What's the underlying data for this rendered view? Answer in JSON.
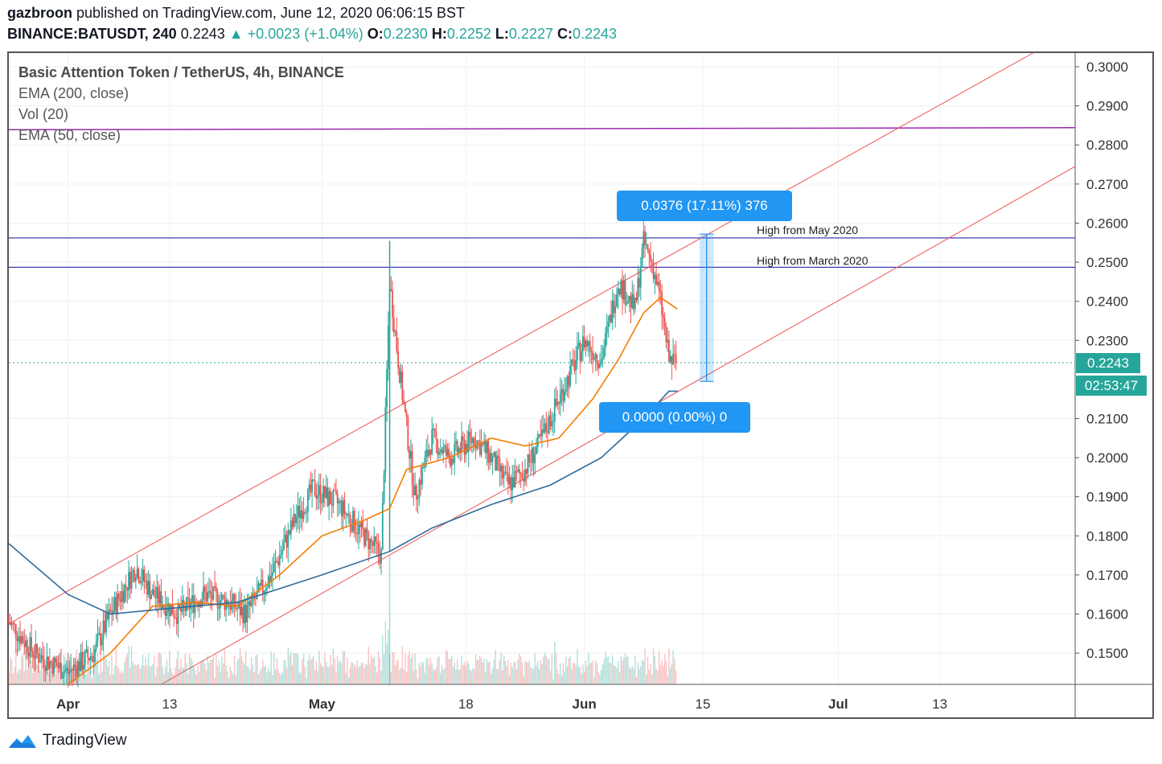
{
  "header": {
    "author": "gazbroon",
    "published_text": "published on TradingView.com, June 12, 2020 06:06:15 BST",
    "symbol": "BINANCE:BATUSDT, 240",
    "last": "0.2243",
    "change": "+0.0023 (+1.04%)",
    "o_label": "O:",
    "o": "0.2230",
    "h_label": "H:",
    "h": "0.2252",
    "l_label": "L:",
    "l": "0.2227",
    "c_label": "C:",
    "c": "0.2243"
  },
  "legend": {
    "title": "Basic Attention Token / TetherUS, 4h, BINANCE",
    "ema200": "EMA (200, close)",
    "vol": "Vol (20)",
    "ema50": "EMA (50, close)"
  },
  "annotations": {
    "measure_top": "0.0376 (17.11%) 376",
    "measure_bottom": "0.0000 (0.00%) 0",
    "high_may": "High from May 2020",
    "high_march": "High from March 2020",
    "price_tag": "0.2243",
    "countdown": "02:53:47"
  },
  "footer": {
    "brand": "TradingView"
  },
  "colors": {
    "up": "#26a69a",
    "down": "#ef5350",
    "ema50": "#f57c00",
    "ema200": "#2f6b9a",
    "channel": "#ef5350",
    "purple": "#9c27b0",
    "hline": "#3f3fb5",
    "measure": "#2196f3"
  },
  "chart_data": {
    "type": "candlestick",
    "title": "Basic Attention Token / TetherUS, 4h, BINANCE",
    "ylim": [
      0.142,
      0.3035
    ],
    "y_ticks": [
      "0.3000",
      "0.2900",
      "0.2800",
      "0.2700",
      "0.2600",
      "0.2500",
      "0.2400",
      "0.2300",
      "0.2100",
      "0.2000",
      "0.1900",
      "0.1800",
      "0.1700",
      "0.1600",
      "0.1500"
    ],
    "x_ticks": [
      "Apr",
      "13",
      "May",
      "18",
      "Jun",
      "15",
      "Jul",
      "13"
    ],
    "x_tick_dates": [
      "2020-04-01",
      "2020-04-13",
      "2020-05-01",
      "2020-05-18",
      "2020-06-01",
      "2020-06-15",
      "2020-07-01",
      "2020-07-13"
    ],
    "x_range": [
      "2020-03-25",
      "2020-07-29"
    ],
    "close_path": [
      [
        "2020-03-25",
        0.158
      ],
      [
        "2020-03-28",
        0.15
      ],
      [
        "2020-04-01",
        0.145
      ],
      [
        "2020-04-04",
        0.15
      ],
      [
        "2020-04-06",
        0.16
      ],
      [
        "2020-04-09",
        0.172
      ],
      [
        "2020-04-11",
        0.165
      ],
      [
        "2020-04-14",
        0.16
      ],
      [
        "2020-04-17",
        0.165
      ],
      [
        "2020-04-20",
        0.163
      ],
      [
        "2020-04-22",
        0.16
      ],
      [
        "2020-04-25",
        0.17
      ],
      [
        "2020-04-28",
        0.185
      ],
      [
        "2020-04-30",
        0.192
      ],
      [
        "2020-05-03",
        0.188
      ],
      [
        "2020-05-06",
        0.18
      ],
      [
        "2020-05-08",
        0.175
      ],
      [
        "2020-05-09",
        0.245
      ],
      [
        "2020-05-10",
        0.225
      ],
      [
        "2020-05-12",
        0.19
      ],
      [
        "2020-05-14",
        0.205
      ],
      [
        "2020-05-16",
        0.2
      ],
      [
        "2020-05-19",
        0.205
      ],
      [
        "2020-05-21",
        0.2
      ],
      [
        "2020-05-23",
        0.193
      ],
      [
        "2020-05-25",
        0.197
      ],
      [
        "2020-05-27",
        0.205
      ],
      [
        "2020-05-29",
        0.215
      ],
      [
        "2020-06-01",
        0.23
      ],
      [
        "2020-06-03",
        0.225
      ],
      [
        "2020-06-05",
        0.245
      ],
      [
        "2020-06-07",
        0.238
      ],
      [
        "2020-06-08",
        0.255
      ],
      [
        "2020-06-09",
        0.25
      ],
      [
        "2020-06-10",
        0.24
      ],
      [
        "2020-06-11",
        0.225
      ],
      [
        "2020-06-12",
        0.2243
      ]
    ],
    "series": [
      {
        "name": "EMA (50, close)",
        "points": [
          [
            "2020-04-01",
            0.142
          ],
          [
            "2020-04-06",
            0.15
          ],
          [
            "2020-04-11",
            0.162
          ],
          [
            "2020-04-16",
            0.163
          ],
          [
            "2020-04-21",
            0.162
          ],
          [
            "2020-04-26",
            0.17
          ],
          [
            "2020-05-01",
            0.18
          ],
          [
            "2020-05-06",
            0.184
          ],
          [
            "2020-05-09",
            0.187
          ],
          [
            "2020-05-11",
            0.197
          ],
          [
            "2020-05-16",
            0.2
          ],
          [
            "2020-05-21",
            0.205
          ],
          [
            "2020-05-25",
            0.203
          ],
          [
            "2020-05-29",
            0.205
          ],
          [
            "2020-06-02",
            0.215
          ],
          [
            "2020-06-05",
            0.225
          ],
          [
            "2020-06-08",
            0.237
          ],
          [
            "2020-06-10",
            0.241
          ],
          [
            "2020-06-12",
            0.238
          ]
        ]
      },
      {
        "name": "EMA (200, close)",
        "points": [
          [
            "2020-03-25",
            0.178
          ],
          [
            "2020-04-01",
            0.165
          ],
          [
            "2020-04-06",
            0.16
          ],
          [
            "2020-04-11",
            0.161
          ],
          [
            "2020-04-21",
            0.163
          ],
          [
            "2020-05-01",
            0.17
          ],
          [
            "2020-05-09",
            0.176
          ],
          [
            "2020-05-14",
            0.182
          ],
          [
            "2020-05-21",
            0.188
          ],
          [
            "2020-05-28",
            0.193
          ],
          [
            "2020-06-03",
            0.2
          ],
          [
            "2020-06-08",
            0.21
          ],
          [
            "2020-06-11",
            0.217
          ],
          [
            "2020-06-12",
            0.217
          ]
        ]
      }
    ],
    "lines": {
      "channel_upper": [
        [
          "2020-03-25",
          0.1575
        ],
        [
          "2020-07-24",
          0.3035
        ]
      ],
      "channel_lower": [
        [
          "2020-04-12",
          0.142
        ],
        [
          "2020-07-29",
          0.2745
        ]
      ],
      "purple_hline": 0.284,
      "high_may_2020": 0.2562,
      "high_march_2020": 0.2487,
      "last_price": 0.2243
    },
    "measure": {
      "from_date": "2020-06-15",
      "to_date": "2020-06-16",
      "from_price": 0.2195,
      "to_price": 0.2572
    }
  }
}
